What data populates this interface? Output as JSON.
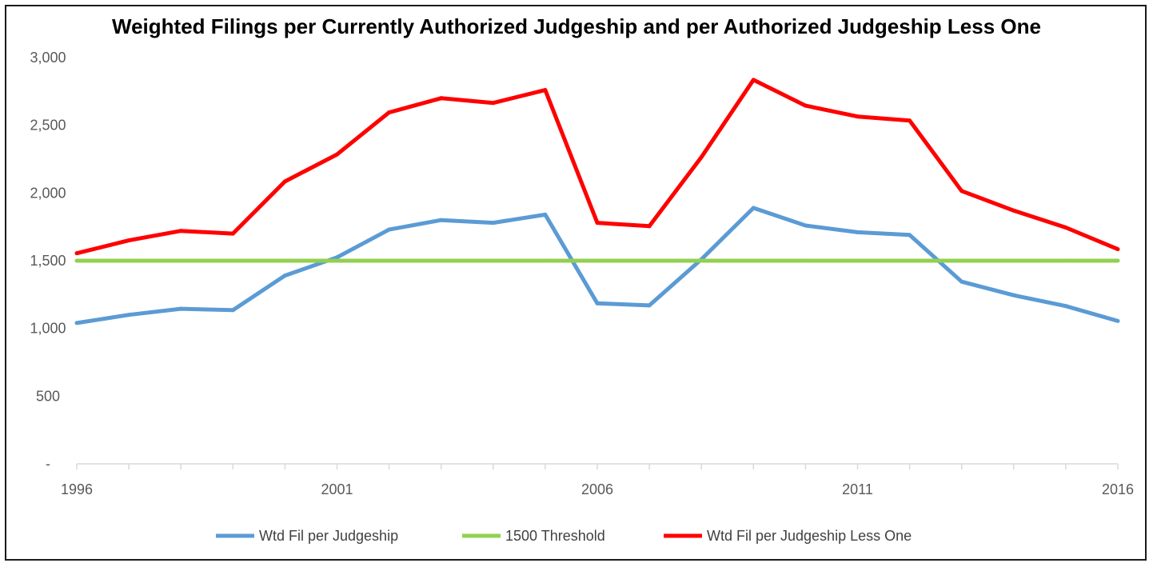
{
  "chart_data": {
    "type": "line",
    "title": "Weighted Filings per Currently Authorized Judgeship and per Authorized Judgeship Less One",
    "x": [
      1996,
      1997,
      1998,
      1999,
      2000,
      2001,
      2002,
      2003,
      2004,
      2005,
      2006,
      2007,
      2008,
      2009,
      2010,
      2011,
      2012,
      2013,
      2014,
      2015,
      2016
    ],
    "x_tick_labels": [
      "1996",
      "2001",
      "2006",
      "2011",
      "2016"
    ],
    "y_tick_labels": [
      "-",
      "500",
      "1,000",
      "1,500",
      "2,000",
      "2,500",
      "3,000"
    ],
    "ylim": [
      0,
      3000
    ],
    "grid": false,
    "legend_position": "bottom",
    "series": [
      {
        "name": "Wtd Fil per Judgeship",
        "color": "#5b9bd5",
        "values": [
          1040,
          1100,
          1145,
          1135,
          1390,
          1525,
          1730,
          1800,
          1780,
          1840,
          1185,
          1170,
          1510,
          1890,
          1760,
          1710,
          1690,
          1345,
          1245,
          1165,
          1055
        ]
      },
      {
        "name": "1500 Threshold",
        "color": "#92d050",
        "values": [
          1500,
          1500,
          1500,
          1500,
          1500,
          1500,
          1500,
          1500,
          1500,
          1500,
          1500,
          1500,
          1500,
          1500,
          1500,
          1500,
          1500,
          1500,
          1500,
          1500,
          1500
        ]
      },
      {
        "name": "Wtd Fil per Judgeship Less One",
        "color": "#ff0000",
        "values": [
          1555,
          1650,
          1720,
          1700,
          2085,
          2285,
          2595,
          2700,
          2665,
          2760,
          1780,
          1755,
          2265,
          2835,
          2645,
          2565,
          2535,
          2015,
          1870,
          1745,
          1585
        ]
      }
    ]
  }
}
